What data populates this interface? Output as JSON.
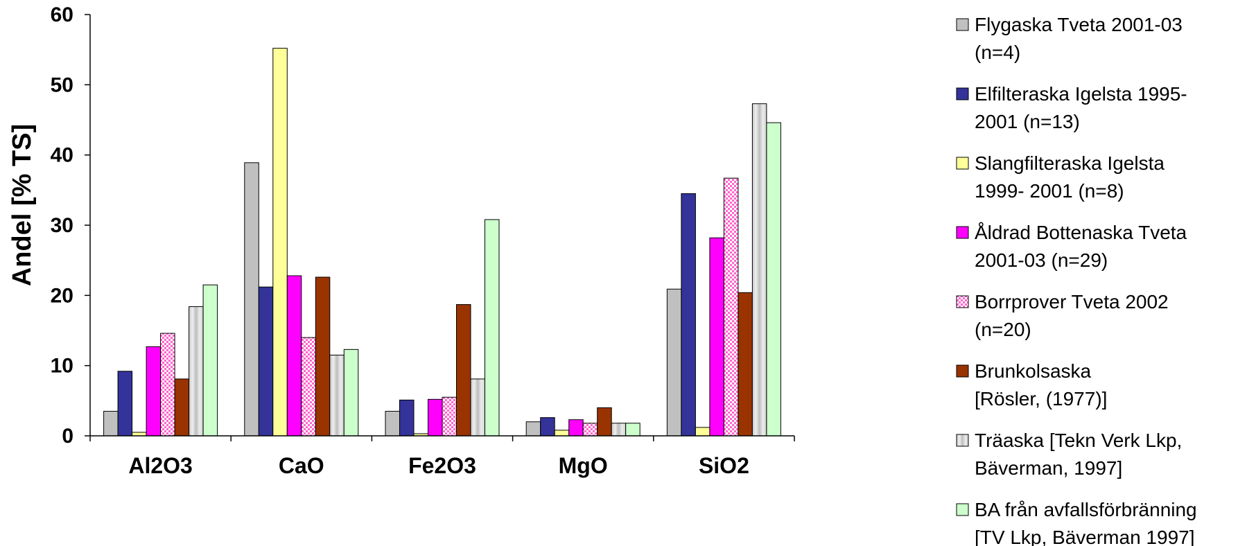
{
  "chart_data": {
    "type": "bar",
    "title": "",
    "xlabel": "",
    "ylabel": "Andel  [% TS]",
    "ylim": [
      0,
      60
    ],
    "yticks": [
      0,
      10,
      20,
      30,
      40,
      50,
      60
    ],
    "grid": false,
    "legend_position": "right",
    "categories": [
      "Al2O3",
      "CaO",
      "Fe2O3",
      "MgO",
      "SiO2"
    ],
    "series": [
      {
        "name": "Flygaska Tveta 2001-03 (n=4)",
        "legend_lines": [
          "Flygaska Tveta 2001-03",
          "(n=4)"
        ],
        "color": "#c0c0c0",
        "pattern": "none",
        "values": [
          3.5,
          38.9,
          3.5,
          2.0,
          20.9
        ]
      },
      {
        "name": "Elfilteraska Igelsta 1995-2001 (n=13)",
        "legend_lines": [
          "Elfilteraska Igelsta 1995-",
          "2001 (n=13)"
        ],
        "color": "#333399",
        "pattern": "none",
        "values": [
          9.2,
          21.2,
          5.1,
          2.6,
          34.5
        ]
      },
      {
        "name": "Slangfilteraska Igelsta 1999- 2001 (n=8)",
        "legend_lines": [
          "Slangfilteraska Igelsta",
          "1999- 2001 (n=8)"
        ],
        "color": "#ffff99",
        "pattern": "none",
        "values": [
          0.5,
          55.2,
          0.3,
          0.8,
          1.2
        ]
      },
      {
        "name": "Åldrad Bottenaska Tveta 2001-03 (n=29)",
        "legend_lines": [
          "Åldrad Bottenaska Tveta",
          "2001-03 (n=29)"
        ],
        "color": "#ff00ff",
        "pattern": "none",
        "values": [
          12.7,
          22.8,
          5.2,
          2.3,
          28.2
        ]
      },
      {
        "name": "Borrprover Tveta 2002 (n=20)",
        "legend_lines": [
          "Borrprover Tveta 2002",
          "(n=20)"
        ],
        "color": "#ff66cc",
        "pattern": "checker",
        "values": [
          14.6,
          14.0,
          5.5,
          1.8,
          36.7
        ]
      },
      {
        "name": "Brunkolsaska [Rösler, (1977)]",
        "legend_lines": [
          "Brunkolsaska",
          "[Rösler, (1977)]"
        ],
        "color": "#993300",
        "pattern": "none",
        "values": [
          8.1,
          22.6,
          18.7,
          4.0,
          20.4
        ]
      },
      {
        "name": "Träaska [Tekn Verk Lkp, Bäverman, 1997]",
        "legend_lines": [
          "Träaska  [Tekn Verk Lkp,",
          "Bäverman, 1997]"
        ],
        "color": "#dcdcdc",
        "pattern": "marble",
        "values": [
          18.4,
          11.5,
          8.1,
          1.8,
          47.3
        ]
      },
      {
        "name": "BA från avfallsförbränning [TV Lkp, Bäverman 1997]",
        "legend_lines": [
          "BA från avfallsförbränning",
          "[TV Lkp, Bäverman 1997]"
        ],
        "color": "#ccffcc",
        "pattern": "none",
        "values": [
          21.5,
          12.3,
          30.8,
          1.8,
          44.6
        ]
      }
    ]
  }
}
